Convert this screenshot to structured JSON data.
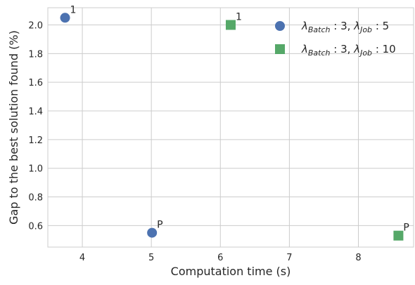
{
  "chart_data": {
    "type": "scatter",
    "xlabel": "Computation time (s)",
    "ylabel": "Gap to the best solution found (%)",
    "xlim": [
      3.5,
      8.8
    ],
    "ylim": [
      0.45,
      2.12
    ],
    "xticks": [
      4,
      5,
      6,
      7,
      8
    ],
    "yticks": [
      0.6,
      0.8,
      1.0,
      1.2,
      1.4,
      1.6,
      1.8,
      2.0
    ],
    "xtick_labels": [
      "4",
      "5",
      "6",
      "7",
      "8"
    ],
    "ytick_labels": [
      "0.6",
      "0.8",
      "1.0",
      "1.2",
      "1.4",
      "1.6",
      "1.8",
      "2.0"
    ],
    "grid": true,
    "legend_position": "top-right",
    "series": [
      {
        "name": "λBatch : 3, λJob : 5",
        "legend": {
          "lambda1_sub": "Batch",
          "value1": " : 3, ",
          "lambda2_sub": "Job",
          "value2": " : 5"
        },
        "marker": "circle",
        "color": "#4C72B0",
        "points": [
          {
            "x": 3.75,
            "y": 2.05,
            "label": "1"
          },
          {
            "x": 5.01,
            "y": 0.55,
            "label": "P"
          }
        ]
      },
      {
        "name": "λBatch : 3, λJob : 10",
        "legend": {
          "lambda1_sub": "Batch",
          "value1": " : 3, ",
          "lambda2_sub": "Job",
          "value2": " : 10"
        },
        "marker": "square",
        "color": "#55A868",
        "points": [
          {
            "x": 6.15,
            "y": 2.0,
            "label": "1"
          },
          {
            "x": 8.58,
            "y": 0.53,
            "label": "P"
          }
        ]
      }
    ]
  }
}
